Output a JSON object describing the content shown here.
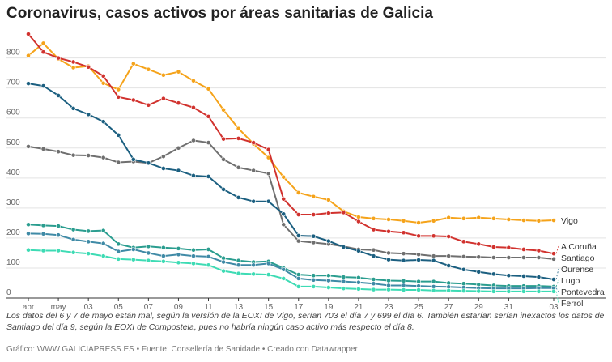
{
  "chart_data": {
    "type": "line",
    "title": "Coronavirus, casos activos por áreas sanitarias de Galicia",
    "note": "Los datos del 6 y 7 de mayo están mal, según la versión de la EOXI de Vigo, serían 703 el día 7 y 699 el día 6. También estarían serían inexactos los datos de Santiago del día 9, según la EOXI de Compostela, pues no habría ningún caso activo más respecto el día 8.",
    "source": "Gráfico: WWW.GALICIAPRESS.ES • Fuente: Consellería de Sanidade • Creado con Datawrapper",
    "categories": [
      "abr",
      null,
      "may",
      null,
      "03",
      null,
      "05",
      null,
      "07",
      null,
      "09",
      null,
      "11",
      null,
      "13",
      null,
      "15",
      null,
      "17",
      null,
      "19",
      null,
      "21",
      null,
      "23",
      null,
      "25",
      null,
      "27",
      null,
      "29",
      null,
      "31",
      null,
      null,
      "03"
    ],
    "ylim": [
      0,
      880
    ],
    "yticks": [
      0,
      100,
      200,
      300,
      400,
      500,
      600,
      700,
      800
    ],
    "grid": true,
    "series": [
      {
        "name": "Vigo",
        "color": "#f5a31a",
        "values": [
          808,
          849,
          797,
          768,
          773,
          716,
          695,
          781,
          762,
          743,
          754,
          724,
          697,
          627,
          565,
          514,
          468,
          403,
          351,
          338,
          327,
          289,
          270,
          265,
          262,
          257,
          251,
          257,
          268,
          265,
          268,
          265,
          262,
          259,
          257,
          259
        ]
      },
      {
        "name": "A Coruña",
        "color": "#d1322e",
        "values": [
          880,
          820,
          800,
          787,
          770,
          740,
          670,
          660,
          643,
          665,
          650,
          635,
          605,
          530,
          532,
          518,
          495,
          330,
          278,
          278,
          283,
          285,
          255,
          228,
          222,
          218,
          207,
          207,
          205,
          188,
          180,
          170,
          168,
          162,
          158,
          148
        ]
      },
      {
        "name": "Santiago",
        "color": "#6f6f6f",
        "values": [
          505,
          497,
          488,
          476,
          475,
          468,
          452,
          455,
          450,
          472,
          500,
          525,
          518,
          462,
          435,
          425,
          415,
          245,
          190,
          185,
          180,
          172,
          162,
          160,
          150,
          148,
          145,
          140,
          140,
          138,
          137,
          135,
          135,
          135,
          135,
          130
        ]
      },
      {
        "name": "Ourense",
        "color": "#1b5f80",
        "values": [
          715,
          707,
          675,
          632,
          612,
          588,
          543,
          462,
          450,
          432,
          425,
          408,
          405,
          362,
          335,
          322,
          322,
          280,
          208,
          206,
          190,
          170,
          157,
          140,
          128,
          125,
          127,
          125,
          108,
          95,
          87,
          80,
          75,
          73,
          70,
          62
        ]
      },
      {
        "name": "Lugo",
        "color": "#2a9d8f",
        "values": [
          245,
          242,
          240,
          228,
          223,
          225,
          180,
          168,
          172,
          168,
          165,
          160,
          162,
          133,
          125,
          120,
          122,
          100,
          78,
          75,
          75,
          70,
          68,
          62,
          58,
          57,
          55,
          55,
          50,
          48,
          45,
          42,
          40,
          40,
          40,
          38
        ]
      },
      {
        "name": "Pontevedra",
        "color": "#3f8aa6",
        "values": [
          215,
          214,
          210,
          195,
          188,
          182,
          155,
          162,
          150,
          140,
          145,
          140,
          138,
          120,
          110,
          110,
          115,
          95,
          65,
          60,
          58,
          55,
          52,
          48,
          42,
          42,
          40,
          38,
          37,
          35,
          33,
          32,
          32,
          32,
          33,
          33
        ]
      },
      {
        "name": "Ferrol",
        "color": "#3ddbb4",
        "values": [
          160,
          158,
          158,
          152,
          148,
          140,
          130,
          128,
          125,
          122,
          118,
          115,
          110,
          90,
          82,
          80,
          78,
          65,
          38,
          38,
          35,
          32,
          30,
          28,
          28,
          27,
          27,
          25,
          25,
          24,
          23,
          22,
          22,
          22,
          22,
          22
        ]
      }
    ]
  }
}
